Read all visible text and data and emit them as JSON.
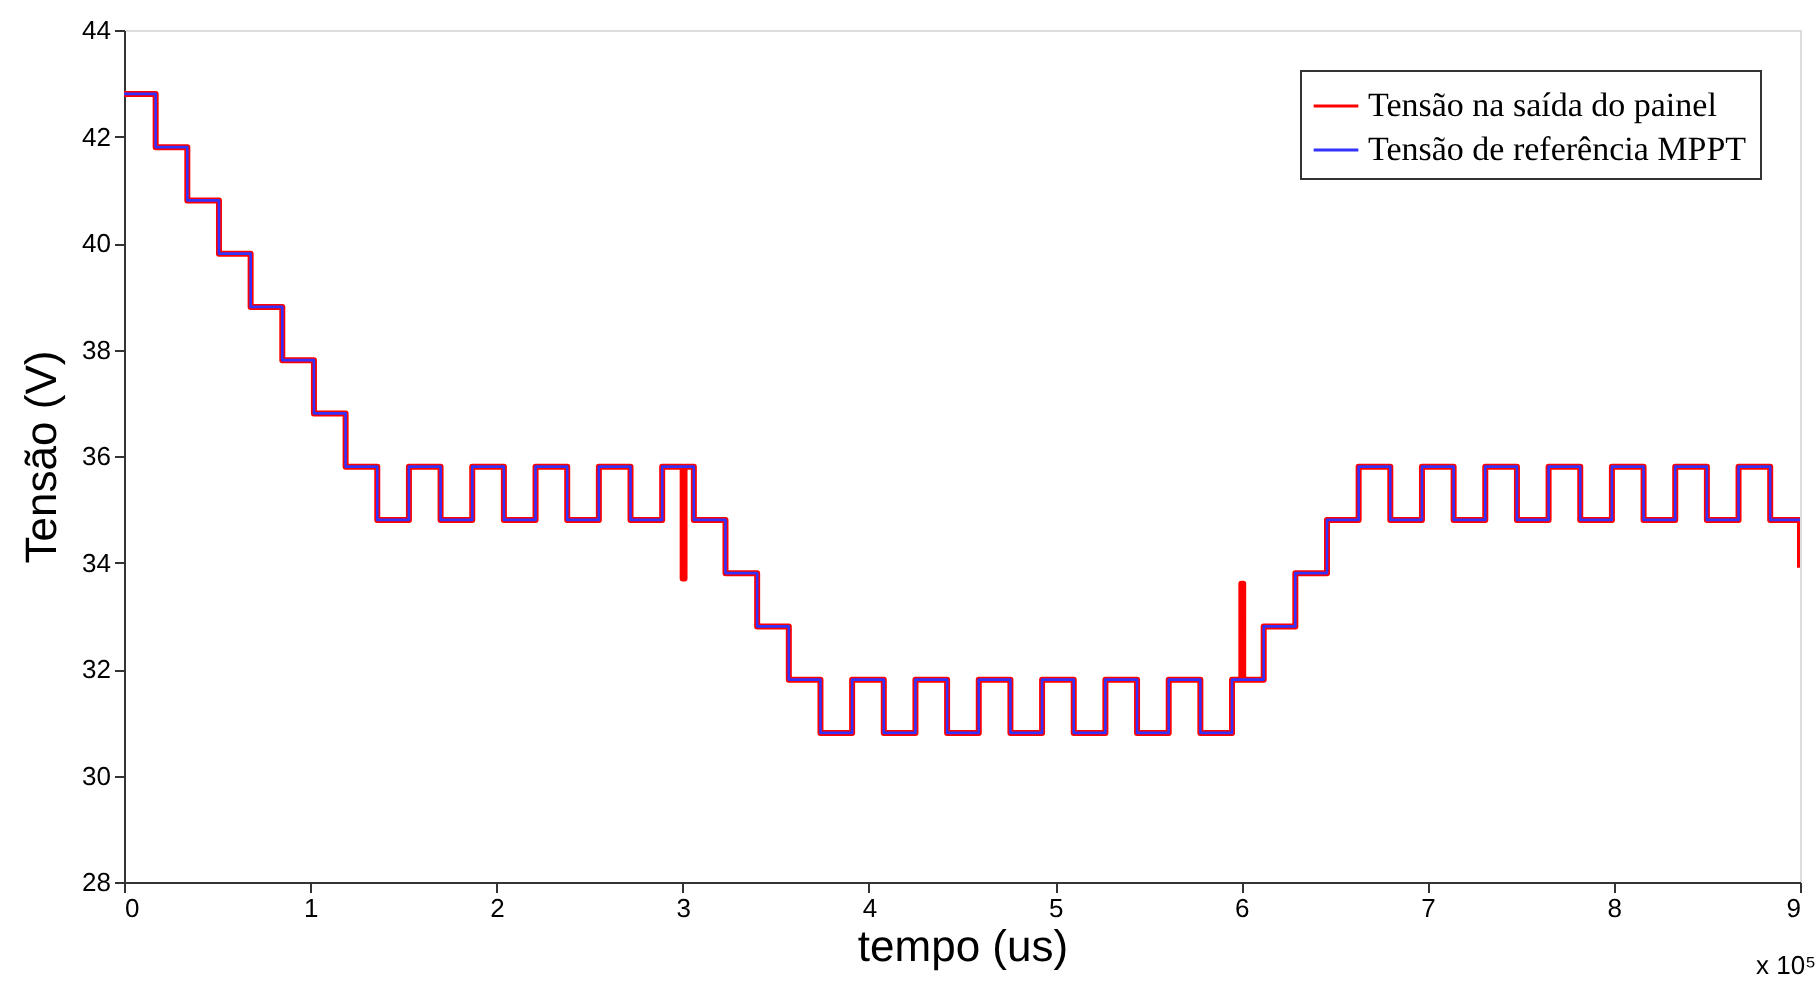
{
  "chart_data": {
    "type": "step",
    "xlabel": "tempo (us)",
    "ylabel": "Tensão (V)",
    "xlim": [
      0,
      9
    ],
    "ylim": [
      28,
      44
    ],
    "xticks": [
      0,
      1,
      2,
      3,
      4,
      5,
      6,
      7,
      8,
      9
    ],
    "yticks": [
      28,
      30,
      32,
      34,
      36,
      38,
      40,
      42,
      44
    ],
    "legend": "top right",
    "annotations": [
      "x 10⁵"
    ],
    "series": [
      {
        "name": "Tensão na saída do painel",
        "color": "#ff0000",
        "x": [
          0,
          0.17,
          0.34,
          0.51,
          0.68,
          0.85,
          1.02,
          1.19,
          1.36,
          1.53,
          1.7,
          1.87,
          2.04,
          2.21,
          2.38,
          2.55,
          2.72,
          2.89,
          3.0,
          3.01,
          3.06,
          3.23,
          3.4,
          3.57,
          3.74,
          3.91,
          4.08,
          4.25,
          4.42,
          4.59,
          4.76,
          4.93,
          5.1,
          5.27,
          5.44,
          5.61,
          5.78,
          5.95,
          6.0,
          6.01,
          6.12,
          6.29,
          6.46,
          6.63,
          6.8,
          6.97,
          7.14,
          7.31,
          7.48,
          7.65,
          7.82,
          7.99,
          8.16,
          8.33,
          8.5,
          8.67,
          8.84,
          9.0
        ],
        "values": [
          42.8,
          41.8,
          40.8,
          39.8,
          38.8,
          37.8,
          36.8,
          35.8,
          34.8,
          35.8,
          34.8,
          35.8,
          34.8,
          35.8,
          34.8,
          35.8,
          34.8,
          35.8,
          33.7,
          35.8,
          34.8,
          33.8,
          32.8,
          31.8,
          30.8,
          31.8,
          30.8,
          31.8,
          30.8,
          31.8,
          30.8,
          31.8,
          30.8,
          31.8,
          30.8,
          31.8,
          30.8,
          31.8,
          33.6,
          31.8,
          32.8,
          33.8,
          34.8,
          35.8,
          34.8,
          35.8,
          34.8,
          35.8,
          34.8,
          35.8,
          34.8,
          35.8,
          34.8,
          35.8,
          34.8,
          35.8,
          34.8,
          33.9
        ]
      },
      {
        "name": "Tensão de referência MPPT",
        "color": "#3333ff",
        "x": [
          0,
          0.17,
          0.34,
          0.51,
          0.68,
          0.85,
          1.02,
          1.19,
          1.36,
          1.53,
          1.7,
          1.87,
          2.04,
          2.21,
          2.38,
          2.55,
          2.72,
          2.89,
          3.06,
          3.23,
          3.4,
          3.57,
          3.74,
          3.91,
          4.08,
          4.25,
          4.42,
          4.59,
          4.76,
          4.93,
          5.1,
          5.27,
          5.44,
          5.61,
          5.78,
          5.95,
          6.12,
          6.29,
          6.46,
          6.63,
          6.8,
          6.97,
          7.14,
          7.31,
          7.48,
          7.65,
          7.82,
          7.99,
          8.16,
          8.33,
          8.5,
          8.67,
          8.84,
          9.0
        ],
        "values": [
          42.8,
          41.8,
          40.8,
          39.8,
          38.8,
          37.8,
          36.8,
          35.8,
          34.8,
          35.8,
          34.8,
          35.8,
          34.8,
          35.8,
          34.8,
          35.8,
          34.8,
          35.8,
          34.8,
          33.8,
          32.8,
          31.8,
          30.8,
          31.8,
          30.8,
          31.8,
          30.8,
          31.8,
          30.8,
          31.8,
          30.8,
          31.8,
          30.8,
          31.8,
          30.8,
          31.8,
          32.8,
          33.8,
          34.8,
          35.8,
          34.8,
          35.8,
          34.8,
          35.8,
          34.8,
          35.8,
          34.8,
          35.8,
          34.8,
          35.8,
          34.8,
          35.8,
          34.8,
          34.8
        ]
      }
    ]
  }
}
